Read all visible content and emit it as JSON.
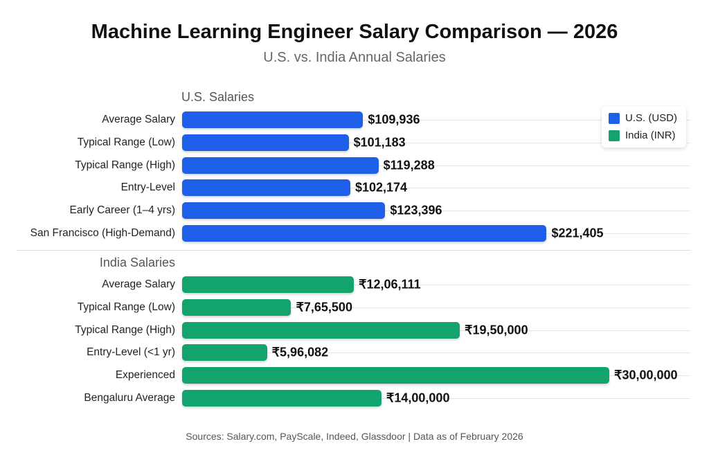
{
  "chart_data": {
    "type": "bar",
    "title": "Machine Learning Engineer Salary Comparison — 2026",
    "subtitle": "U.S. vs. India Annual Salaries",
    "legend": {
      "placement": "top-right",
      "entries": [
        {
          "name": "U.S. (USD)",
          "color": "#1f5ee8"
        },
        {
          "name": "India (INR)",
          "color": "#13a36c"
        }
      ]
    },
    "sections": [
      {
        "name": "U.S. Salaries",
        "color": "#1f5ee8",
        "max": 225000,
        "categories": [
          "Average Salary",
          "Typical Range (Low)",
          "Typical Range (High)",
          "Entry-Level",
          "Early Career (1–4 yrs)",
          "San Francisco (High-Demand)"
        ],
        "values": [
          109936,
          101183,
          119288,
          102174,
          123396,
          221405
        ],
        "labels": [
          "$109,936",
          "$101,183",
          "$119,288",
          "$102,174",
          "$123,396",
          "$221,405"
        ]
      },
      {
        "name": "India Salaries",
        "color": "#13a36c",
        "max": 3000000,
        "categories": [
          "Average Salary",
          "Typical Range (Low)",
          "Typical Range (High)",
          "Entry-Level (<1 yr)",
          "Experienced",
          "Bengaluru Average"
        ],
        "values": [
          1206111,
          765500,
          1950000,
          596082,
          3000000,
          1400000
        ],
        "labels": [
          "₹12,06,111",
          "₹7,65,500",
          "₹19,50,000",
          "₹5,96,082",
          "₹30,00,000",
          "₹14,00,000"
        ]
      }
    ],
    "source": "Sources: Salary.com, PayScale, Indeed, Glassdoor | Data as of February 2026"
  }
}
